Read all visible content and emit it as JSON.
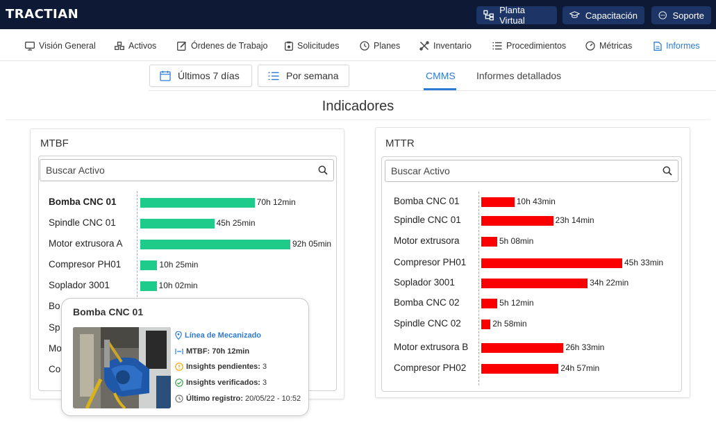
{
  "app": {
    "logo": "TRACTIAN"
  },
  "header": {
    "buttons": [
      {
        "label": "Planta Virtual",
        "icon": "hierarchy-icon"
      },
      {
        "label": "Capacitación",
        "icon": "graduation-cap-icon"
      },
      {
        "label": "Soporte",
        "icon": "chat-icon"
      }
    ]
  },
  "nav": {
    "items": [
      {
        "label": "Visión General",
        "icon": "monitor-icon"
      },
      {
        "label": "Activos",
        "icon": "assets-icon"
      },
      {
        "label": "Órdenes de Trabajo",
        "icon": "edit-icon"
      },
      {
        "label": "Solicitudes",
        "icon": "clipboard-icon"
      },
      {
        "label": "Planes",
        "icon": "clock-icon"
      },
      {
        "label": "Inventario",
        "icon": "tools-icon"
      },
      {
        "label": "Procedimientos",
        "icon": "list-icon"
      },
      {
        "label": "Métricas",
        "icon": "gauge-icon"
      },
      {
        "label": "Informes",
        "icon": "document-icon",
        "active": true
      }
    ]
  },
  "filters": {
    "period": "Últimos 7 días",
    "grouping": "Por semana"
  },
  "tabs": [
    {
      "label": "CMMS",
      "active": true
    },
    {
      "label": "Informes detallados"
    }
  ],
  "section_title": "Indicadores",
  "colors": {
    "mtbf_bar": "#1fcb8a",
    "mttr_bar": "#fb0000",
    "accent": "#2e7bd6"
  },
  "mtbf": {
    "title": "MTBF",
    "search_placeholder": "Buscar Activo",
    "rows": [
      {
        "label": "Bomba CNC 01",
        "value": "70h 12min",
        "minutes": 4212
      },
      {
        "label": "Spindle CNC 01",
        "value": "45h 25min",
        "minutes": 2725
      },
      {
        "label": "Motor extrusora A",
        "value": "92h 05min",
        "minutes": 5525
      },
      {
        "label": "Compresor PH01",
        "value": "10h 25min",
        "minutes": 625
      },
      {
        "label": "Soplador 3001",
        "value": "10h 02min",
        "minutes": 602
      },
      {
        "label": "Bo"
      },
      {
        "label": "Sp"
      },
      {
        "label": "Mo"
      },
      {
        "label": "Co"
      }
    ]
  },
  "mttr": {
    "title": "MTTR",
    "search_placeholder": "Buscar Activo",
    "rows": [
      {
        "label": "Bomba CNC 01",
        "value": "10h 43min",
        "minutes": 643
      },
      {
        "label": "Spindle CNC 01",
        "value": "23h 14min",
        "minutes": 1394
      },
      {
        "label": "Motor extrusora",
        "value": "5h 08min",
        "minutes": 308
      },
      {
        "label": "Compresor PH01",
        "value": "45h 33min",
        "minutes": 2733
      },
      {
        "label": "Soplador 3001",
        "value": "34h 22min",
        "minutes": 2062
      },
      {
        "label": "Bomba CNC 02",
        "value": "5h 12min",
        "minutes": 312
      },
      {
        "label": "Spindle CNC 02",
        "value": "2h 58min",
        "minutes": 178
      },
      {
        "label": "Motor extrusora B",
        "value": "26h 33min",
        "minutes": 1593
      },
      {
        "label": "Compresor PH02",
        "value": "24h 57min",
        "minutes": 1497
      }
    ]
  },
  "tooltip": {
    "title": "Bomba CNC 01",
    "location": "Línea de Mecanizado",
    "mtbf": "MTBF: 70h 12min",
    "pending_label": "Insights pendientes:",
    "pending_value": "3",
    "verified_label": "Insights verificados:",
    "verified_value": "3",
    "last_label": "Último registro:",
    "last_value": "20/05/22 - 10:52"
  }
}
